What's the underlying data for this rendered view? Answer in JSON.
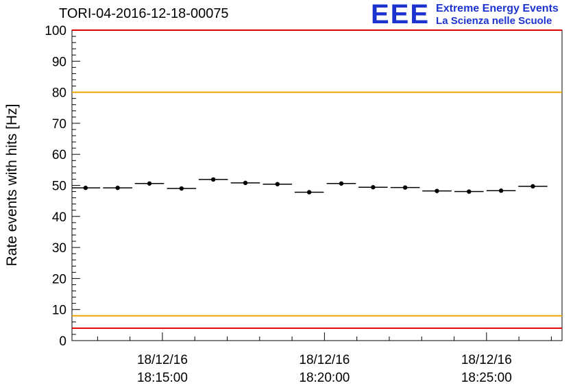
{
  "colors": {
    "red_line": "#e10000",
    "orange_line": "#f0a500",
    "marker": "#000000",
    "frame": "#000000",
    "logo_blue": "#1d33cf"
  },
  "logo": {
    "mark": "EEE",
    "line1": "Extreme Energy Events",
    "line2": "La Scienza nelle Scuole"
  },
  "chart_data": {
    "type": "scatter",
    "title": "TORI-04-2016-12-18-00075",
    "ylabel": "Rate events with hits [Hz]",
    "xlabel": "",
    "ylim": [
      0,
      100
    ],
    "y_major_step": 10,
    "y_minor_step": 2,
    "y_tick_labels": [
      "0",
      "10",
      "20",
      "30",
      "40",
      "50",
      "60",
      "70",
      "80",
      "90",
      "100"
    ],
    "x_axis": {
      "range_min": [
        0,
        15.12
      ],
      "minor_step_min": 1,
      "ticks": [
        {
          "pos_min": 2.79,
          "date": "18/12/16",
          "time": "18:15:00"
        },
        {
          "pos_min": 7.79,
          "date": "18/12/16",
          "time": "18:20:00"
        },
        {
          "pos_min": 12.79,
          "date": "18/12/16",
          "time": "18:25:00"
        }
      ]
    },
    "ref_lines": [
      {
        "y": 100,
        "color": "#e10000"
      },
      {
        "y": 80,
        "color": "#f0a500"
      },
      {
        "y": 8,
        "color": "#f0a500"
      },
      {
        "y": 4,
        "color": "#e10000"
      }
    ],
    "series": [
      {
        "name": "rate",
        "x_min": [
          0.42,
          1.41,
          2.39,
          3.38,
          4.36,
          5.35,
          6.34,
          7.32,
          8.31,
          9.29,
          10.28,
          11.26,
          12.25,
          13.24,
          14.22
        ],
        "y": [
          49.2,
          49.2,
          50.6,
          49.0,
          51.9,
          50.8,
          50.4,
          47.8,
          50.6,
          49.4,
          49.3,
          48.2,
          48.0,
          48.3,
          49.7
        ],
        "x_halfwidth_min": 0.45,
        "y_err": 0.5
      }
    ],
    "legend": "none",
    "grid": false
  }
}
